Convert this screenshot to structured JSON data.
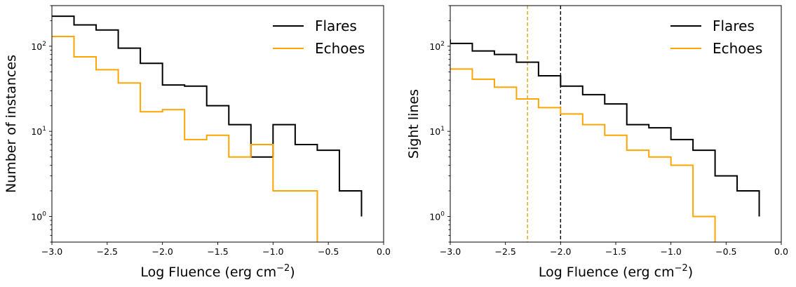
{
  "colors": {
    "flares": "#000000",
    "echoes": "#FFA500",
    "threshold_echoes": "#DAA520",
    "threshold_flares": "#000000"
  },
  "chart_data": [
    {
      "type": "line",
      "step": "histogram",
      "xlabel": "Log Fluence (erg cm",
      "xlabel_sup": "−2",
      "xlabel_tail": ")",
      "ylabel": "Number of instances",
      "xlim": [
        -3.0,
        0.0
      ],
      "ylim": [
        0.5,
        300
      ],
      "yscale": "log",
      "xticks": [
        -3.0,
        -2.5,
        -2.0,
        -1.5,
        -1.0,
        -0.5,
        0.0
      ],
      "xtick_labels": [
        "−3.0",
        "−2.5",
        "−2.0",
        "−1.5",
        "−1.0",
        "−0.5",
        "0.0"
      ],
      "yticks": [
        {
          "value": 100,
          "base": "10",
          "exp": "2"
        },
        {
          "value": 10,
          "base": "10",
          "exp": "1"
        },
        {
          "value": 1,
          "base": "10",
          "exp": "0"
        }
      ],
      "legend": {
        "position": "top-right",
        "entries": [
          "Flares",
          "Echoes"
        ]
      },
      "bin_edges": [
        -3.0,
        -2.8,
        -2.6,
        -2.4,
        -2.2,
        -2.0,
        -1.8,
        -1.6,
        -1.4,
        -1.2,
        -1.0,
        -0.8,
        -0.6,
        -0.4,
        -0.2
      ],
      "series": [
        {
          "name": "Flares",
          "color_key": "flares",
          "values": [
            225,
            178,
            155,
            95,
            63,
            35,
            34,
            20,
            12,
            5,
            12,
            7,
            6,
            2
          ],
          "end_drop_to": 1
        },
        {
          "name": "Echoes",
          "color_key": "echoes",
          "values": [
            130,
            75,
            53,
            37,
            17,
            18,
            8,
            9,
            5,
            7,
            2,
            2
          ],
          "end_drop_to": 0.3
        }
      ],
      "vlines": []
    },
    {
      "type": "line",
      "step": "histogram",
      "xlabel": "Log Fluence (erg cm",
      "xlabel_sup": "−2",
      "xlabel_tail": ")",
      "ylabel": "Sight lines",
      "xlim": [
        -3.0,
        0.0
      ],
      "ylim": [
        0.5,
        300
      ],
      "yscale": "log",
      "xticks": [
        -3.0,
        -2.5,
        -2.0,
        -1.5,
        -1.0,
        -0.5,
        0.0
      ],
      "xtick_labels": [
        "−3.0",
        "−2.5",
        "−2.0",
        "−1.5",
        "−1.0",
        "−0.5",
        "0.0"
      ],
      "yticks": [
        {
          "value": 100,
          "base": "10",
          "exp": "2"
        },
        {
          "value": 10,
          "base": "10",
          "exp": "1"
        },
        {
          "value": 1,
          "base": "10",
          "exp": "0"
        }
      ],
      "legend": {
        "position": "top-right",
        "entries": [
          "Flares",
          "Echoes"
        ]
      },
      "bin_edges": [
        -3.0,
        -2.8,
        -2.6,
        -2.4,
        -2.2,
        -2.0,
        -1.8,
        -1.6,
        -1.4,
        -1.2,
        -1.0,
        -0.8,
        -0.6,
        -0.4,
        -0.2
      ],
      "series": [
        {
          "name": "Flares",
          "color_key": "flares",
          "values": [
            108,
            88,
            80,
            65,
            45,
            34,
            27,
            21,
            12,
            11,
            8,
            6,
            3,
            2
          ],
          "end_drop_to": 1,
          "start_value": 120
        },
        {
          "name": "Echoes",
          "color_key": "echoes",
          "values": [
            54,
            41,
            33,
            24,
            19,
            16,
            12,
            9,
            6,
            5,
            4,
            1
          ],
          "end_drop_to": 0.3
        }
      ],
      "vlines": [
        {
          "x": -2.3,
          "color_key": "threshold_echoes"
        },
        {
          "x": -2.0,
          "color_key": "threshold_flares"
        }
      ]
    }
  ]
}
